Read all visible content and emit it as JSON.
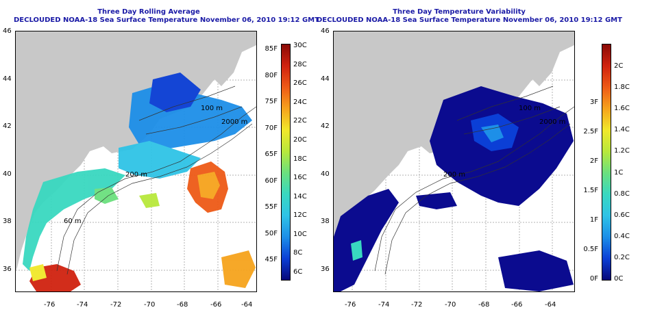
{
  "left_panel": {
    "title_line1": "Three Day Rolling Average",
    "title_line2": "DECLOUDED NOAA-18 Sea Surface Temperature November 06, 2010 19:12 GMT",
    "colorbar_left_labels": [
      "85F",
      "80F",
      "75F",
      "70F",
      "65F",
      "60F",
      "55F",
      "50F",
      "45F"
    ],
    "colorbar_right_labels": [
      "30C",
      "28C",
      "26C",
      "24C",
      "22C",
      "20C",
      "18C",
      "16C",
      "14C",
      "12C",
      "10C",
      "8C",
      "6C"
    ],
    "colors": [
      "#08087a",
      "#0b3fd6",
      "#1d8fe8",
      "#2fc3e6",
      "#39d8c0",
      "#6be07e",
      "#b8e83c",
      "#f1e82a",
      "#f6a31c",
      "#ee5a17",
      "#d0220f",
      "#8a0a06"
    ]
  },
  "right_panel": {
    "title_line1": "Three Day Temperature Variability",
    "title_line2": "DECLOUDED NOAA-18 Sea Surface Temperature November 06, 2010 19:12 GMT",
    "colorbar_left_labels": [
      "3F",
      "2.5F",
      "2F",
      "1.5F",
      "1F",
      "0.5F",
      "0F"
    ],
    "colorbar_right_labels": [
      "2C",
      "1.8C",
      "1.6C",
      "1.4C",
      "1.2C",
      "1C",
      "0.8C",
      "0.6C",
      "0.4C",
      "0.2C",
      "0C"
    ],
    "colors": [
      "#08087a",
      "#0b3fd6",
      "#1d8fe8",
      "#2fc3e6",
      "#39d8c0",
      "#6be07e",
      "#b8e83c",
      "#f1e82a",
      "#f6a31c",
      "#ee5a17",
      "#d0220f",
      "#8a0a06"
    ]
  },
  "axes": {
    "x_ticks": [
      "-76",
      "-74",
      "-72",
      "-70",
      "-68",
      "-66",
      "-64"
    ],
    "y_ticks": [
      "46",
      "44",
      "42",
      "40",
      "38",
      "36"
    ]
  },
  "contours": {
    "label_100": "100 m",
    "label_200": "200 m",
    "label_2000": "2000 m",
    "label_60": "60 m"
  },
  "colors": {
    "land": "#c8c8c8",
    "grid": "#b0b0b0",
    "title": "#1a1aa6"
  }
}
